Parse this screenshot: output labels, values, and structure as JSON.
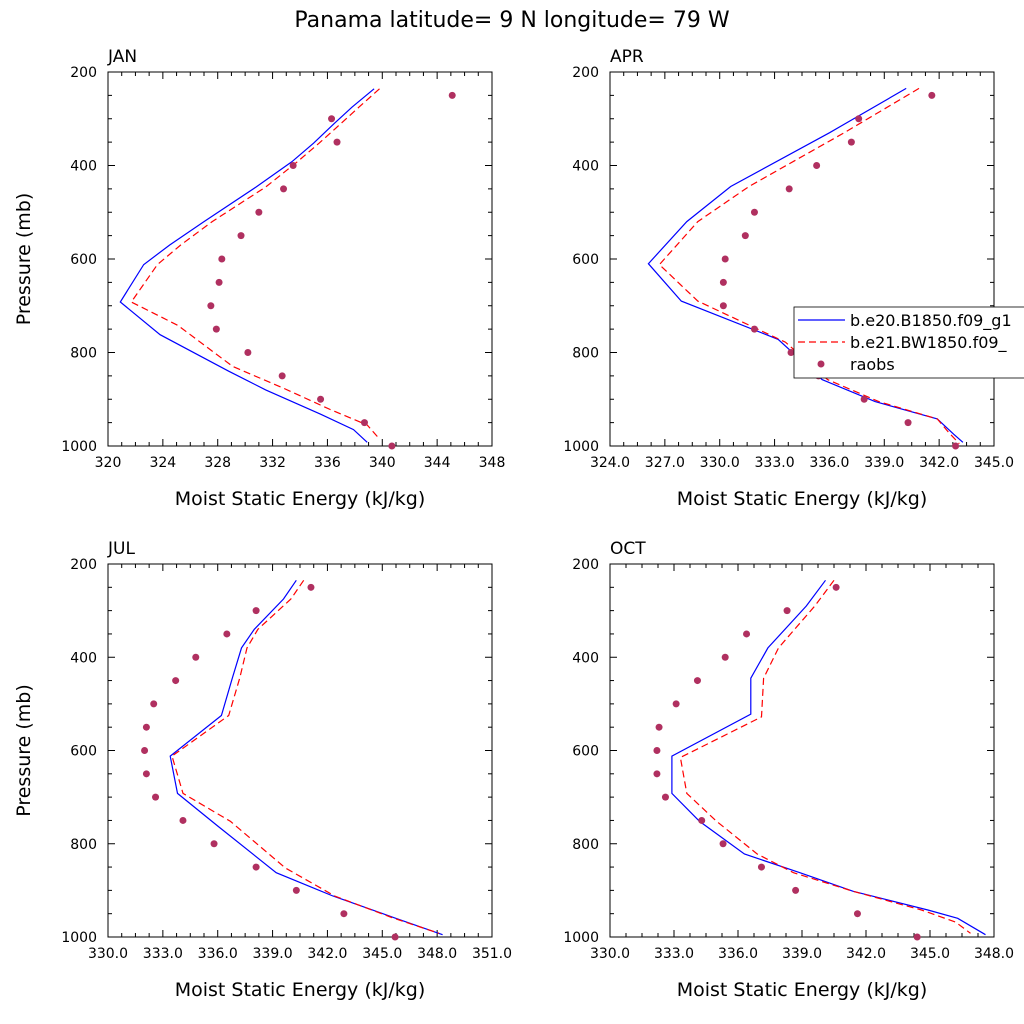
{
  "figure": {
    "title": "Panama  latitude= 9 N longitude= 79 W"
  },
  "legend": {
    "entries": [
      {
        "label": "b.e20.B1850.f09_g1",
        "style": "solid",
        "color": "#0000ff"
      },
      {
        "label": "b.e21.BW1850.f09_",
        "style": "dashed",
        "color": "#ff0000"
      },
      {
        "label": "raobs",
        "style": "marker",
        "color": "#b03060"
      }
    ]
  },
  "colors": {
    "series1": "#0000ff",
    "series2": "#ff0000",
    "obs": "#b03060"
  },
  "chart_data": [
    {
      "type": "line",
      "panel": "JAN",
      "title": "JAN",
      "xlabel": "Moist Static Energy (kJ/kg)",
      "ylabel": "Pressure (mb)",
      "xlim": [
        320,
        348
      ],
      "ylim": [
        1000,
        200
      ],
      "xticks": [
        320,
        324,
        328,
        332,
        336,
        340,
        344,
        348
      ],
      "xtick_labels": [
        "320",
        "324",
        "328",
        "332",
        "336",
        "340",
        "344",
        "348"
      ],
      "yticks": [
        200,
        400,
        600,
        800,
        1000
      ],
      "ytick_labels": [
        "200",
        "400",
        "600",
        "800",
        "1000"
      ],
      "series": [
        {
          "name": "b.e20.B1850.f09_g1",
          "style": "solid",
          "points": [
            [
              339.4,
              236
            ],
            [
              337.8,
              275
            ],
            [
              336.5,
              310
            ],
            [
              335,
              352
            ],
            [
              333.4,
              392
            ],
            [
              330.8,
              446
            ],
            [
              327,
              520
            ],
            [
              324.5,
              570
            ],
            [
              322.6,
              612
            ],
            [
              320.9,
              692
            ],
            [
              323.8,
              762
            ],
            [
              328.8,
              840
            ],
            [
              331.5,
              880
            ],
            [
              335.5,
              932
            ],
            [
              337.9,
              965
            ],
            [
              338.9,
              992
            ]
          ]
        },
        {
          "name": "b.e21.BW1850.f09_",
          "style": "dashed",
          "points": [
            [
              339.8,
              236
            ],
            [
              338.3,
              275
            ],
            [
              337,
              310
            ],
            [
              335.4,
              352
            ],
            [
              333.8,
              392
            ],
            [
              331.5,
              446
            ],
            [
              327.6,
              520
            ],
            [
              325.3,
              570
            ],
            [
              323.6,
              612
            ],
            [
              321.7,
              692
            ],
            [
              325.1,
              742
            ],
            [
              329.1,
              830
            ],
            [
              332.7,
              875
            ],
            [
              336.2,
              922
            ],
            [
              338.9,
              955
            ],
            [
              339.8,
              985
            ]
          ]
        },
        {
          "name": "raobs",
          "style": "marker",
          "points": [
            [
              345.1,
              250
            ],
            [
              336.3,
              300
            ],
            [
              336.7,
              350
            ],
            [
              333.5,
              400
            ],
            [
              332.8,
              450
            ],
            [
              331,
              500
            ],
            [
              329.7,
              550
            ],
            [
              328.3,
              600
            ],
            [
              328.1,
              650
            ],
            [
              327.5,
              700
            ],
            [
              327.9,
              750
            ],
            [
              330.2,
              800
            ],
            [
              332.7,
              850
            ],
            [
              335.5,
              900
            ],
            [
              338.7,
              950
            ],
            [
              340.7,
              1000
            ]
          ]
        }
      ]
    },
    {
      "type": "line",
      "panel": "APR",
      "title": "APR",
      "xlabel": "Moist Static Energy (kJ/kg)",
      "ylabel": "",
      "xlim": [
        324,
        345
      ],
      "ylim": [
        1000,
        200
      ],
      "xticks": [
        324,
        327,
        330,
        333,
        336,
        339,
        342,
        345
      ],
      "xtick_labels": [
        "324.0",
        "327.0",
        "330.0",
        "333.0",
        "336.0",
        "339.0",
        "342.0",
        "345.0"
      ],
      "yticks": [
        200,
        400,
        600,
        800,
        1000
      ],
      "ytick_labels": [
        "200",
        "400",
        "600",
        "800",
        "1000"
      ],
      "series": [
        {
          "name": "b.e20.B1850.f09_g1",
          "style": "solid",
          "points": [
            [
              340.2,
              235
            ],
            [
              336,
              330
            ],
            [
              330.6,
              445
            ],
            [
              328.2,
              520
            ],
            [
              326.1,
              610
            ],
            [
              327.9,
              690
            ],
            [
              333.2,
              772
            ],
            [
              335.6,
              858
            ],
            [
              338.5,
              905
            ],
            [
              341.9,
              942
            ],
            [
              342.8,
              975
            ],
            [
              343.3,
              992
            ]
          ]
        },
        {
          "name": "b.e21.BW1850.f09_",
          "style": "dashed",
          "points": [
            [
              340.9,
              235
            ],
            [
              336.8,
              330
            ],
            [
              331.6,
              445
            ],
            [
              328.8,
              520
            ],
            [
              326.7,
              612
            ],
            [
              328.8,
              690
            ],
            [
              333.6,
              778
            ],
            [
              335.9,
              858
            ],
            [
              338.7,
              905
            ],
            [
              341.9,
              942
            ],
            [
              342.5,
              970
            ],
            [
              343.1,
              995
            ]
          ]
        },
        {
          "name": "raobs",
          "style": "marker",
          "points": [
            [
              341.6,
              250
            ],
            [
              337.6,
              300
            ],
            [
              337.2,
              350
            ],
            [
              335.3,
              400
            ],
            [
              333.8,
              450
            ],
            [
              331.9,
              500
            ],
            [
              331.4,
              550
            ],
            [
              330.3,
              600
            ],
            [
              330.2,
              650
            ],
            [
              330.2,
              700
            ],
            [
              331.9,
              750
            ],
            [
              333.9,
              800
            ],
            [
              335.4,
              850
            ],
            [
              337.9,
              900
            ],
            [
              340.3,
              950
            ],
            [
              342.9,
              1000
            ]
          ]
        }
      ]
    },
    {
      "type": "line",
      "panel": "JUL",
      "title": "JUL",
      "xlabel": "Moist Static Energy (kJ/kg)",
      "ylabel": "Pressure (mb)",
      "xlim": [
        330,
        351
      ],
      "ylim": [
        1000,
        200
      ],
      "xticks": [
        330,
        333,
        336,
        339,
        342,
        345,
        348,
        351
      ],
      "xtick_labels": [
        "330.0",
        "333.0",
        "336.0",
        "339.0",
        "342.0",
        "345.0",
        "348.0",
        "351.0"
      ],
      "yticks": [
        200,
        400,
        600,
        800,
        1000
      ],
      "ytick_labels": [
        "200",
        "400",
        "600",
        "800",
        "1000"
      ],
      "series": [
        {
          "name": "b.e20.B1850.f09_g1",
          "style": "solid",
          "points": [
            [
              340.3,
              235
            ],
            [
              339.6,
              275
            ],
            [
              338,
              340
            ],
            [
              337.3,
              380
            ],
            [
              336.8,
              445
            ],
            [
              336.2,
              525
            ],
            [
              333.4,
              612
            ],
            [
              333.8,
              692
            ],
            [
              336,
              762
            ],
            [
              339.2,
              862
            ],
            [
              342.3,
              912
            ],
            [
              345.6,
              958
            ],
            [
              348.3,
              995
            ]
          ]
        },
        {
          "name": "b.e21.BW1850.f09_",
          "style": "dashed",
          "points": [
            [
              340.7,
              235
            ],
            [
              340,
              275
            ],
            [
              338.2,
              340
            ],
            [
              337.6,
              380
            ],
            [
              337.2,
              445
            ],
            [
              336.6,
              525
            ],
            [
              333.5,
              612
            ],
            [
              334.1,
              692
            ],
            [
              336.7,
              752
            ],
            [
              339.7,
              852
            ],
            [
              342.4,
              912
            ],
            [
              345.5,
              958
            ],
            [
              348.1,
              992
            ]
          ]
        },
        {
          "name": "raobs",
          "style": "marker",
          "points": [
            [
              341.1,
              250
            ],
            [
              338.1,
              300
            ],
            [
              336.5,
              350
            ],
            [
              334.8,
              400
            ],
            [
              333.7,
              450
            ],
            [
              332.5,
              500
            ],
            [
              332.1,
              550
            ],
            [
              332,
              600
            ],
            [
              332.1,
              650
            ],
            [
              332.6,
              700
            ],
            [
              334.1,
              750
            ],
            [
              335.8,
              800
            ],
            [
              338.1,
              850
            ],
            [
              340.3,
              900
            ],
            [
              342.9,
              950
            ],
            [
              345.7,
              1000
            ]
          ]
        }
      ]
    },
    {
      "type": "line",
      "panel": "OCT",
      "title": "OCT",
      "xlabel": "Moist Static Energy (kJ/kg)",
      "ylabel": "",
      "xlim": [
        330,
        348
      ],
      "ylim": [
        1000,
        200
      ],
      "xticks": [
        330,
        333,
        336,
        339,
        342,
        345,
        348
      ],
      "xtick_labels": [
        "330.0",
        "333.0",
        "336.0",
        "339.0",
        "342.0",
        "345.0",
        "348.0"
      ],
      "yticks": [
        200,
        400,
        600,
        800,
        1000
      ],
      "ytick_labels": [
        "200",
        "400",
        "600",
        "800",
        "1000"
      ],
      "series": [
        {
          "name": "b.e20.B1850.f09_g1",
          "style": "solid",
          "points": [
            [
              340.1,
              235
            ],
            [
              339.2,
              290
            ],
            [
              337.4,
              380
            ],
            [
              336.6,
              445
            ],
            [
              336.6,
              522
            ],
            [
              332.9,
              612
            ],
            [
              332.9,
              692
            ],
            [
              334.2,
              752
            ],
            [
              336.3,
              822
            ],
            [
              338.9,
              862
            ],
            [
              341.4,
              902
            ],
            [
              344.9,
              942
            ],
            [
              346.3,
              960
            ],
            [
              347.6,
              995
            ]
          ]
        },
        {
          "name": "b.e21.BW1850.f09_",
          "style": "dashed",
          "points": [
            [
              340.5,
              235
            ],
            [
              339.6,
              290
            ],
            [
              337.9,
              380
            ],
            [
              337.2,
              445
            ],
            [
              337.1,
              528
            ],
            [
              333.3,
              615
            ],
            [
              333.6,
              692
            ],
            [
              335,
              752
            ],
            [
              336.9,
              822
            ],
            [
              338.6,
              862
            ],
            [
              341.4,
              902
            ],
            [
              344.6,
              942
            ],
            [
              346.2,
              968
            ],
            [
              346.9,
              992
            ]
          ]
        },
        {
          "name": "raobs",
          "style": "marker",
          "points": [
            [
              340.6,
              250
            ],
            [
              338.3,
              300
            ],
            [
              336.4,
              350
            ],
            [
              335.4,
              400
            ],
            [
              334.1,
              450
            ],
            [
              333.1,
              500
            ],
            [
              332.3,
              550
            ],
            [
              332.2,
              600
            ],
            [
              332.2,
              650
            ],
            [
              332.6,
              700
            ],
            [
              334.3,
              750
            ],
            [
              335.3,
              800
            ],
            [
              337.1,
              850
            ],
            [
              338.7,
              900
            ],
            [
              341.6,
              950
            ],
            [
              344.4,
              1000
            ]
          ]
        }
      ]
    }
  ]
}
